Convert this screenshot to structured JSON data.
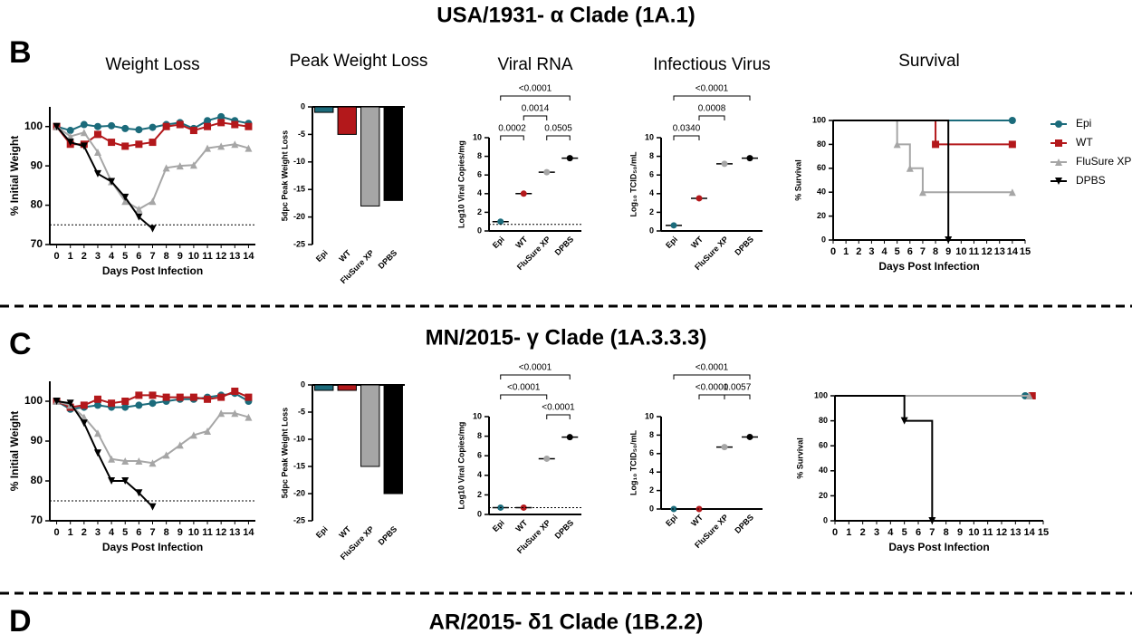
{
  "sections": [
    {
      "letter": "B",
      "title": "USA/1931- α Clade (1A.1)"
    },
    {
      "letter": "C",
      "title": "MN/2015- γ Clade (1A.3.3.3)"
    },
    {
      "letter": "D",
      "title": "AR/2015- δ1 Clade (1B.2.2)"
    }
  ],
  "chart_data": [
    {
      "type": "line",
      "title": "Weight Loss",
      "x_label": "Days Post  Infection",
      "y_label": "% Initial Weight",
      "x": [
        0,
        1,
        2,
        3,
        4,
        5,
        6,
        7,
        8,
        9,
        10,
        11,
        12,
        13,
        14
      ],
      "xlim": [
        -0.5,
        14.5
      ],
      "xticks": [
        0,
        1,
        2,
        3,
        4,
        5,
        6,
        7,
        8,
        9,
        10,
        11,
        12,
        13,
        14
      ],
      "ylim": [
        70,
        105
      ],
      "yticks": [
        70,
        80,
        90,
        100
      ],
      "threshold": 75,
      "series": [
        {
          "name": "Epi",
          "color": "#1b6b7b",
          "values": [
            100,
            99,
            100.5,
            100,
            100.2,
            99.5,
            99.2,
            99.8,
            100.5,
            101,
            99.5,
            101.5,
            102.5,
            101.5,
            100.8
          ]
        },
        {
          "name": "WT",
          "color": "#b3181b",
          "values": [
            100,
            95.5,
            95.5,
            98,
            96,
            95,
            95.5,
            96,
            100,
            100.5,
            99,
            100,
            101,
            100.5,
            100
          ]
        },
        {
          "name": "FluSure XP",
          "color": "#a6a6a6",
          "values": [
            100,
            97.5,
            98.5,
            93.5,
            86,
            81,
            79,
            81,
            89.5,
            90,
            90.2,
            94.5,
            95,
            95.5,
            94.5
          ]
        },
        {
          "name": "DPBS",
          "color": "#000000",
          "values": [
            100,
            96,
            95,
            88,
            86,
            82,
            77,
            74,
            null,
            null,
            null,
            null,
            null,
            null,
            null
          ]
        }
      ]
    },
    {
      "type": "bar",
      "title": "Peak Weight Loss",
      "y_label": "5dpc Peak Weight Loss",
      "categories": [
        "Epi",
        "WT",
        "FluSure XP",
        "DPBS"
      ],
      "values": [
        -1,
        -5,
        -18,
        -17
      ],
      "colors": [
        "#1b6b7b",
        "#b3181b",
        "#a6a6a6",
        "#000000"
      ],
      "ylim": [
        -25,
        0
      ],
      "yticks": [
        0,
        -5,
        -10,
        -15,
        -20,
        -25
      ]
    },
    {
      "type": "scatter",
      "title": "Viral RNA",
      "y_label": "Log10 Viral Copies/mg",
      "categories": [
        "Epi",
        "WT",
        "FluSure XP",
        "DPBS"
      ],
      "values": [
        1,
        4,
        6.3,
        7.8
      ],
      "colors": [
        "#1b6b7b",
        "#b3181b",
        "#a6a6a6",
        "#000000"
      ],
      "ylim": [
        0,
        10
      ],
      "yticks": [
        0,
        2,
        4,
        6,
        8,
        10
      ],
      "detection_limit": 0.7,
      "annotations": [
        "<0.0001",
        "0.0014",
        "0.0002",
        "0.0505"
      ]
    },
    {
      "type": "scatter",
      "title": "Infectious Virus",
      "y_label": "Log₁₀ TCID₅₀/mL",
      "categories": [
        "Epi",
        "WT",
        "FluSure XP",
        "DPBS"
      ],
      "values": [
        0.6,
        3.5,
        7.2,
        7.8
      ],
      "colors": [
        "#1b6b7b",
        "#b3181b",
        "#a6a6a6",
        "#000000"
      ],
      "ylim": [
        0,
        10
      ],
      "yticks": [
        0,
        2,
        4,
        6,
        8,
        10
      ],
      "detection_limit": 0,
      "annotations": [
        "<0.0001",
        "0.0008",
        "0.0340"
      ]
    },
    {
      "type": "line",
      "title": "Survival",
      "x_label": "Days Post Infection",
      "y_label": "% Survival",
      "xlim": [
        0,
        15
      ],
      "xticks": [
        0,
        1,
        2,
        3,
        4,
        5,
        6,
        7,
        8,
        9,
        10,
        11,
        12,
        13,
        14,
        15
      ],
      "ylim": [
        0,
        100
      ],
      "yticks": [
        0,
        20,
        40,
        60,
        80,
        100
      ],
      "legend": "right",
      "series": [
        {
          "name": "Epi",
          "color": "#1b6b7b",
          "x": [
            0,
            14
          ],
          "values": [
            100,
            100
          ]
        },
        {
          "name": "WT",
          "color": "#b3181b",
          "x": [
            0,
            8,
            8,
            14
          ],
          "values": [
            100,
            100,
            80,
            80
          ]
        },
        {
          "name": "FluSure XP",
          "color": "#a6a6a6",
          "x": [
            0,
            5,
            5,
            6,
            6,
            7,
            7,
            14
          ],
          "values": [
            100,
            100,
            80,
            80,
            60,
            60,
            40,
            40
          ]
        },
        {
          "name": "DPBS",
          "color": "#000000",
          "x": [
            0,
            9,
            9
          ],
          "values": [
            100,
            100,
            0
          ]
        }
      ]
    },
    {
      "type": "line",
      "x_label": "Days Post Infection",
      "y_label": "% Initial Weight",
      "x": [
        0,
        1,
        2,
        3,
        4,
        5,
        6,
        7,
        8,
        9,
        10,
        11,
        12,
        13,
        14
      ],
      "xlim": [
        -0.5,
        14.5
      ],
      "xticks": [
        0,
        1,
        2,
        3,
        4,
        5,
        6,
        7,
        8,
        9,
        10,
        11,
        12,
        13,
        14
      ],
      "ylim": [
        70,
        105
      ],
      "yticks": [
        70,
        80,
        90,
        100
      ],
      "threshold": 75,
      "series": [
        {
          "name": "Epi",
          "color": "#1b6b7b",
          "values": [
            100,
            98,
            98.5,
            99,
            98.5,
            98.5,
            99,
            99.5,
            100,
            100.5,
            100.5,
            101,
            101.5,
            102,
            100
          ]
        },
        {
          "name": "WT",
          "color": "#b3181b",
          "values": [
            100,
            98.5,
            99,
            100.5,
            99.5,
            100,
            101.5,
            101.5,
            101,
            101,
            101,
            100.5,
            101,
            102.5,
            101
          ]
        },
        {
          "name": "FluSure XP",
          "color": "#a6a6a6",
          "values": [
            100,
            99,
            96,
            92,
            85.5,
            85,
            85,
            84.5,
            86.5,
            89,
            91.5,
            92.5,
            97,
            97,
            96
          ]
        },
        {
          "name": "DPBS",
          "color": "#000000",
          "values": [
            100,
            99.5,
            94.5,
            87,
            80,
            80,
            77,
            73.5,
            null,
            null,
            null,
            null,
            null,
            null,
            null
          ]
        }
      ]
    },
    {
      "type": "bar",
      "y_label": "5dpc Peak Weight Loss",
      "categories": [
        "Epi",
        "WT",
        "FluSure XP",
        "DPBS"
      ],
      "values": [
        -1,
        -1,
        -15,
        -20
      ],
      "colors": [
        "#1b6b7b",
        "#b3181b",
        "#a6a6a6",
        "#000000"
      ],
      "ylim": [
        -25,
        0
      ],
      "yticks": [
        0,
        -5,
        -10,
        -15,
        -20,
        -25
      ]
    },
    {
      "type": "scatter",
      "y_label": "Log10 Viral Copies/mg",
      "categories": [
        "Epi",
        "WT",
        "FluSure XP",
        "DPBS"
      ],
      "values": [
        0.7,
        0.7,
        5.7,
        7.9
      ],
      "colors": [
        "#1b6b7b",
        "#b3181b",
        "#a6a6a6",
        "#000000"
      ],
      "ylim": [
        0,
        10
      ],
      "yticks": [
        0,
        2,
        4,
        6,
        8,
        10
      ],
      "detection_limit": 0.7,
      "annotations": [
        "<0.0001",
        "<0.0001",
        "<0.0001"
      ]
    },
    {
      "type": "scatter",
      "y_label": "Log₁₀ TCID₅₀/mL",
      "categories": [
        "Epi",
        "WT",
        "FluSure XP",
        "DPBS"
      ],
      "values": [
        0,
        0,
        6.7,
        7.8
      ],
      "colors": [
        "#1b6b7b",
        "#b3181b",
        "#a6a6a6",
        "#000000"
      ],
      "ylim": [
        0,
        10
      ],
      "yticks": [
        0,
        2,
        4,
        6,
        8,
        10
      ],
      "detection_limit": 0,
      "annotations": [
        "<0.0001",
        "<0.0001",
        "0.0057"
      ]
    },
    {
      "type": "line",
      "x_label": "Days Post Infection",
      "y_label": "% Survival",
      "xlim": [
        0,
        15
      ],
      "xticks": [
        0,
        1,
        2,
        3,
        4,
        5,
        6,
        7,
        8,
        9,
        10,
        11,
        12,
        13,
        14,
        15
      ],
      "ylim": [
        0,
        100
      ],
      "yticks": [
        0,
        20,
        40,
        60,
        80,
        100
      ],
      "series": [
        {
          "name": "Epi",
          "color": "#1b6b7b",
          "x": [
            0,
            13.7
          ],
          "values": [
            100,
            100
          ]
        },
        {
          "name": "WT",
          "color": "#b3181b",
          "x": [
            0,
            14.2
          ],
          "values": [
            100,
            100
          ]
        },
        {
          "name": "FluSure XP",
          "color": "#a6a6a6",
          "x": [
            0,
            14
          ],
          "values": [
            100,
            100
          ]
        },
        {
          "name": "DPBS",
          "color": "#000000",
          "x": [
            0,
            5,
            5,
            7,
            7
          ],
          "values": [
            100,
            100,
            80,
            80,
            0
          ]
        }
      ]
    }
  ]
}
